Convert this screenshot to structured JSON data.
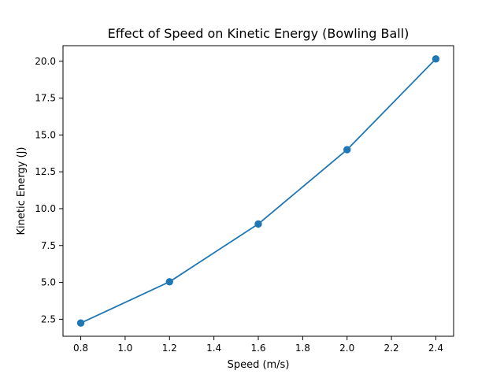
{
  "chart_data": {
    "type": "line",
    "title": "Effect of Speed on Kinetic Energy (Bowling Ball)",
    "xlabel": "Speed (m/s)",
    "ylabel": "Kinetic Energy (J)",
    "x": [
      0.8,
      1.2,
      1.6,
      2.0,
      2.4
    ],
    "series": [
      {
        "values": [
          2.24,
          5.04,
          8.96,
          14.0,
          20.16
        ],
        "color": "#1f77b4",
        "marker": "circle"
      }
    ],
    "xlim": [
      0.72,
      2.48
    ],
    "ylim": [
      1.344,
      21.056
    ],
    "xticks": [
      0.8,
      1.0,
      1.2,
      1.4,
      1.6,
      1.8,
      2.0,
      2.2,
      2.4
    ],
    "xtick_labels": [
      "0.8",
      "1.0",
      "1.2",
      "1.4",
      "1.6",
      "1.8",
      "2.0",
      "2.2",
      "2.4"
    ],
    "yticks": [
      2.5,
      5.0,
      7.5,
      10.0,
      12.5,
      15.0,
      17.5,
      20.0
    ],
    "ytick_labels": [
      "2.5",
      "5.0",
      "7.5",
      "10.0",
      "12.5",
      "15.0",
      "17.5",
      "20.0"
    ],
    "grid": false,
    "legend": false
  }
}
